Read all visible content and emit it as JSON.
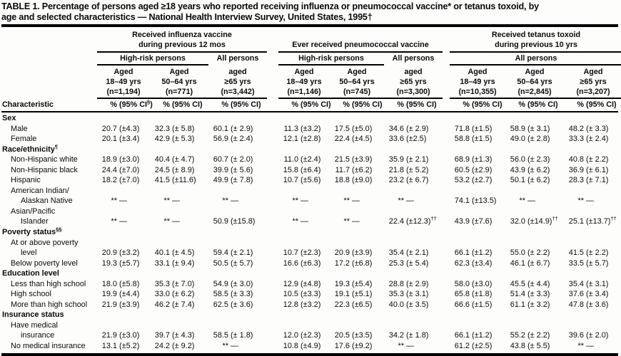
{
  "title": {
    "line1": "TABLE 1. Percentage of persons aged ≥18 years who reported receiving influenza or pneumococcal vaccine* or tetanus toxoid, by",
    "line2": "age and selected characteristics — National Health Interview Survey, United States, 1995†"
  },
  "header": {
    "characteristic": "Characteristic",
    "groups": [
      {
        "line1": "Received influenza vaccine",
        "line2": "during previous 12 mos",
        "subs": [
          {
            "label": "High-risk persons",
            "cols": 2,
            "rule": true
          },
          {
            "label": "All persons",
            "cols": 1,
            "rule": false
          }
        ]
      },
      {
        "line1": "",
        "line2": "Ever received pneumococcal vaccine",
        "subs": [
          {
            "label": "High-risk persons",
            "cols": 2,
            "rule": true
          },
          {
            "label": "All persons",
            "cols": 1,
            "rule": false
          }
        ]
      },
      {
        "line1": "Received tetanus toxoid",
        "line2": "during previous 10 yrs",
        "subs": [
          {
            "label": "All persons",
            "cols": 3,
            "rule": true
          }
        ]
      }
    ],
    "columns": [
      {
        "aged": "Aged",
        "yrs": "18–49 yrs",
        "n": "(n=1,194)",
        "pct": "%",
        "ci": "(95% CI)",
        "sup": "§"
      },
      {
        "aged": "Aged",
        "yrs": "50–64 yrs",
        "n": "(n=771)",
        "pct": "%",
        "ci": "(95% CI)"
      },
      {
        "aged": "aged",
        "yrs": "≥65 yrs",
        "n": "(n=3,442)",
        "pct": "%",
        "ci": "(95% CI)"
      },
      {
        "aged": "Aged",
        "yrs": "18–49 yrs",
        "n": "(n=1,146)",
        "pct": "%",
        "ci": "(95% CI)"
      },
      {
        "aged": "Aged",
        "yrs": "50–64 yrs",
        "n": "(n=745)",
        "pct": "%",
        "ci": "(95% CI)"
      },
      {
        "aged": "aged",
        "yrs": "≥65 yrs",
        "n": "(n=3,300)",
        "pct": "%",
        "ci": "(95% CI)"
      },
      {
        "aged": "Aged",
        "yrs": "18–49 yrs",
        "n": "(n=10,355)",
        "pct": "%",
        "ci": "(95% CI)"
      },
      {
        "aged": "Aged",
        "yrs": "50–64 yrs",
        "n": "(n=2,845)",
        "pct": "%",
        "ci": "(95% CI)"
      },
      {
        "aged": "Aged",
        "yrs": "≥65 yrs",
        "n": "(n=3,207)",
        "pct": "%",
        "ci": "(95% CI)"
      }
    ]
  },
  "rows": [
    {
      "t": "s",
      "label": "Sex"
    },
    {
      "t": "d",
      "label": "Male",
      "cells": [
        [
          "20.7",
          "(±4.3)"
        ],
        [
          "32.3",
          "(± 5.8)"
        ],
        [
          "60.1",
          "(± 2.9)"
        ],
        [
          "11.3",
          "(±3.2)"
        ],
        [
          "17.5",
          "(±5.0)"
        ],
        [
          "34.6",
          "(± 2.9)"
        ],
        [
          "71.8",
          "(±1.5)"
        ],
        [
          "58.9",
          "(± 3.1)"
        ],
        [
          "48.2",
          "(± 3.3)"
        ]
      ]
    },
    {
      "t": "d",
      "label": "Female",
      "cells": [
        [
          "20.1",
          "(±3.4)"
        ],
        [
          "42.9",
          "(± 5.3)"
        ],
        [
          "56.9",
          "(± 2.4)"
        ],
        [
          "12.1",
          "(±2.8)"
        ],
        [
          "22.4",
          "(±4.5)"
        ],
        [
          "33.6",
          "(±2.5)"
        ],
        [
          "58.8",
          "(±1.5)"
        ],
        [
          "49.0",
          "(± 2.8)"
        ],
        [
          "33.3",
          "(± 2.4)"
        ]
      ]
    },
    {
      "t": "s",
      "label": "Race/ethnicity",
      "sup": "¶"
    },
    {
      "t": "d",
      "label": "Non-Hispanic white",
      "cells": [
        [
          "18.9",
          "(±3.0)"
        ],
        [
          "40.4",
          "(± 4.7)"
        ],
        [
          "60.7",
          "(± 2.0)"
        ],
        [
          "11.0",
          "(±2.4)"
        ],
        [
          "21.5",
          "(±3.9)"
        ],
        [
          "35.9",
          "(± 2.1)"
        ],
        [
          "68.9",
          "(±1.3)"
        ],
        [
          "56.0",
          "(± 2.3)"
        ],
        [
          "40.8",
          "(± 2.2)"
        ]
      ]
    },
    {
      "t": "d",
      "label": "Non-Hispanic black",
      "cells": [
        [
          "24.4",
          "(±7.0)"
        ],
        [
          "24.5",
          "(± 8.9)"
        ],
        [
          "39.9",
          "(± 5.6)"
        ],
        [
          "15.8",
          "(±6.4)"
        ],
        [
          "11.7",
          "(±6.2)"
        ],
        [
          "21.8",
          "(± 5.2)"
        ],
        [
          "60.5",
          "(±2.9)"
        ],
        [
          "43.9",
          "(± 6.2)"
        ],
        [
          "36.9",
          "(± 6.1)"
        ]
      ]
    },
    {
      "t": "d",
      "label": "Hispanic",
      "cells": [
        [
          "18.2",
          "(±7.0)"
        ],
        [
          "41.5",
          "(±11.6)"
        ],
        [
          "49.9",
          "(± 7.8)"
        ],
        [
          "10.7",
          "(±5.6)"
        ],
        [
          "18.8",
          "(±9.0)"
        ],
        [
          "23.2",
          "(± 6.7)"
        ],
        [
          "53.2",
          "(±2.7)"
        ],
        [
          "50.1",
          "(± 6.2)"
        ],
        [
          "28.3",
          "(± 7.1)"
        ]
      ]
    },
    {
      "t": "c",
      "label": "American Indian/"
    },
    {
      "t": "d",
      "label": "Alaskan Native",
      "i2": true,
      "cells": [
        [
          "**",
          "—"
        ],
        [
          "**",
          "—"
        ],
        [
          "**",
          "—"
        ],
        [
          "**",
          "—"
        ],
        [
          "**",
          "—"
        ],
        [
          "**",
          "—"
        ],
        [
          "74.1",
          "(±13.5)"
        ],
        [
          "**",
          "—"
        ],
        [
          "**",
          "—"
        ]
      ]
    },
    {
      "t": "c",
      "label": "Asian/Pacific"
    },
    {
      "t": "d",
      "label": "Islander",
      "i2": true,
      "cells": [
        [
          "**",
          "—"
        ],
        [
          "**",
          "—"
        ],
        [
          "50.9",
          "(±15.8)"
        ],
        [
          "**",
          "—"
        ],
        [
          "**",
          "—"
        ],
        [
          "22.4",
          "(±12.3)",
          "††"
        ],
        [
          "43.9",
          "(±7.6)"
        ],
        [
          "32.0",
          "(±14.9)",
          "††"
        ],
        [
          "25.1",
          "(±13.7)",
          "††"
        ]
      ]
    },
    {
      "t": "s",
      "label": "Poverty status",
      "sup": "§§"
    },
    {
      "t": "c",
      "label": "At or above poverty"
    },
    {
      "t": "d",
      "label": "level",
      "i2": true,
      "cells": [
        [
          "20.9",
          "(±3.2)"
        ],
        [
          "40.1",
          "(± 4.5)"
        ],
        [
          "59.4",
          "(± 2.1)"
        ],
        [
          "10.7",
          "(±2.3)"
        ],
        [
          "20.9",
          "(±3.9)"
        ],
        [
          "35.4",
          "(± 2.1)"
        ],
        [
          "66.1",
          "(±1.2)"
        ],
        [
          "55.0",
          "(± 2.2)"
        ],
        [
          "41.5",
          "(± 2.2)"
        ]
      ]
    },
    {
      "t": "d",
      "label": "Below poverty level",
      "cells": [
        [
          "19.3",
          "(±5.7)"
        ],
        [
          "33.1",
          "(± 9.4)"
        ],
        [
          "50.5",
          "(± 5.7)"
        ],
        [
          "16.6",
          "(±6.3)"
        ],
        [
          "17.2",
          "(±6.8)"
        ],
        [
          "25.3",
          "(± 5.4)"
        ],
        [
          "62.3",
          "(±3.4)"
        ],
        [
          "46.1",
          "(± 6.7)"
        ],
        [
          "33.5",
          "(± 5.7)"
        ]
      ]
    },
    {
      "t": "s",
      "label": "Education level"
    },
    {
      "t": "d",
      "label": "Less than high school",
      "cells": [
        [
          "18.0",
          "(±5.8)"
        ],
        [
          "35.3",
          "(± 7.0)"
        ],
        [
          "54.9",
          "(± 3.0)"
        ],
        [
          "12.9",
          "(±4.8)"
        ],
        [
          "19.3",
          "(±5.4)"
        ],
        [
          "28.8",
          "(± 2.9)"
        ],
        [
          "58.0",
          "(±3.0)"
        ],
        [
          "45.5",
          "(± 4.4)"
        ],
        [
          "35.4",
          "(± 3.1)"
        ]
      ]
    },
    {
      "t": "d",
      "label": "High school",
      "cells": [
        [
          "19.9",
          "(±4.4)"
        ],
        [
          "33.0",
          "(± 6.2)"
        ],
        [
          "58.5",
          "(± 3.3)"
        ],
        [
          "10.5",
          "(±3.3)"
        ],
        [
          "19.1",
          "(±5.1)"
        ],
        [
          "35.3",
          "(± 3.1)"
        ],
        [
          "65.8",
          "(±1.8)"
        ],
        [
          "51.4",
          "(± 3.3)"
        ],
        [
          "37.6",
          "(± 3.4)"
        ]
      ]
    },
    {
      "t": "d",
      "label": "More than high school",
      "cells": [
        [
          "21.9",
          "(±3.9)"
        ],
        [
          "46.2",
          "(± 7.4)"
        ],
        [
          "62.5",
          "(± 3.6)"
        ],
        [
          "12.8",
          "(±3.2)"
        ],
        [
          "22.3",
          "(±6.5)"
        ],
        [
          "40.0",
          "(± 3.5)"
        ],
        [
          "66.6",
          "(±1.5)"
        ],
        [
          "61.1",
          "(± 3.2)"
        ],
        [
          "47.8",
          "(± 3.6)"
        ]
      ]
    },
    {
      "t": "s",
      "label": "Insurance status"
    },
    {
      "t": "c",
      "label": "Have medical"
    },
    {
      "t": "d",
      "label": "insurance",
      "i2": true,
      "cells": [
        [
          "21.9",
          "(±3.0)"
        ],
        [
          "39.7",
          "(± 4.3)"
        ],
        [
          "58.5",
          "(± 1.8)"
        ],
        [
          "12.0",
          "(±2.3)"
        ],
        [
          "20.5",
          "(±3.5)"
        ],
        [
          "34.2",
          "(± 1.8)"
        ],
        [
          "66.1",
          "(±1.2)"
        ],
        [
          "55.2",
          "(± 2.2)"
        ],
        [
          "39.6",
          "(± 2.0)"
        ]
      ]
    },
    {
      "t": "d",
      "label": "No medical insurance",
      "cells": [
        [
          "13.1",
          "(±5.2)"
        ],
        [
          "24.2",
          "(± 9.2)"
        ],
        [
          "**",
          "—"
        ],
        [
          "10.8",
          "(±4.9)"
        ],
        [
          "17.6",
          "(±9.2)"
        ],
        [
          "**",
          "—"
        ],
        [
          "61.2",
          "(±2.5)"
        ],
        [
          "43.8",
          "(± 5.5)"
        ],
        [
          "**",
          "—"
        ]
      ]
    }
  ]
}
